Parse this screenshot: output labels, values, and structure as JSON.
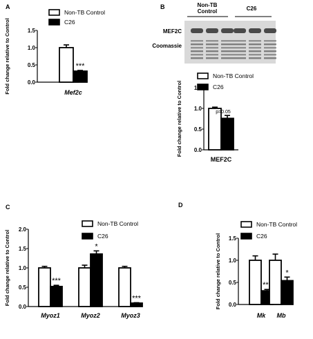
{
  "panel_labels": {
    "a": "A",
    "b": "B",
    "c": "C",
    "d": "D"
  },
  "legend": {
    "control": "Non-TB Control",
    "c26": "C26"
  },
  "ylabel": "Fold change relative to Control",
  "blot": {
    "header_left": "Non-TB",
    "header_left2": "Control",
    "header_right": "C26",
    "row1": "MEF2C",
    "row2": "Coomassie"
  },
  "colors": {
    "control": "#ffffff",
    "c26": "#000000",
    "blot_bg": "#d9d9d9"
  },
  "chart_data": [
    {
      "id": "A",
      "type": "bar",
      "categories": [
        "Mef2c"
      ],
      "series": [
        {
          "name": "Non-TB Control",
          "values": [
            1.0
          ],
          "errors": [
            0.08
          ]
        },
        {
          "name": "C26",
          "values": [
            0.32
          ],
          "errors": [
            0.02
          ]
        }
      ],
      "annotations": [
        "***"
      ],
      "ylabel": "Fold change relative to Control",
      "ylim": [
        0,
        1.5
      ],
      "yticks": [
        "0.0",
        "0.5",
        "1.0",
        "1.5"
      ],
      "tick_values": [
        0,
        0.5,
        1.0,
        1.5
      ]
    },
    {
      "id": "B",
      "type": "bar",
      "categories": [
        "MEF2C"
      ],
      "series": [
        {
          "name": "Non-TB Control",
          "values": [
            1.0
          ],
          "errors": [
            0.03
          ]
        },
        {
          "name": "C26",
          "values": [
            0.76
          ],
          "errors": [
            0.07
          ]
        }
      ],
      "annotations": [
        "p=0.05"
      ],
      "ylabel": "Fold change relative to Control",
      "ylim": [
        0,
        1.5
      ],
      "yticks": [
        "0.0",
        "0.5",
        "1.0",
        "1.5"
      ],
      "tick_values": [
        0,
        0.5,
        1.0,
        1.5
      ]
    },
    {
      "id": "C",
      "type": "bar",
      "categories": [
        "Myoz1",
        "Myoz2",
        "Myoz3"
      ],
      "series": [
        {
          "name": "Non-TB Control",
          "values": [
            1.0,
            1.0,
            1.0
          ],
          "errors": [
            0.04,
            0.07,
            0.04
          ]
        },
        {
          "name": "C26",
          "values": [
            0.52,
            1.36,
            0.09
          ],
          "errors": [
            0.03,
            0.08,
            0.01
          ]
        }
      ],
      "annotations": [
        "***",
        "*",
        "***"
      ],
      "ylabel": "Fold change relative to Control",
      "ylim": [
        0,
        2.0
      ],
      "yticks": [
        "0.0",
        "0.5",
        "1.0",
        "1.5",
        "2.0"
      ],
      "tick_values": [
        0,
        0.5,
        1.0,
        1.5,
        2.0
      ]
    },
    {
      "id": "D",
      "type": "bar",
      "categories": [
        "Mk",
        "Mb"
      ],
      "series": [
        {
          "name": "Non-TB Control",
          "values": [
            1.0,
            1.0
          ],
          "errors": [
            0.1,
            0.14
          ]
        },
        {
          "name": "C26",
          "values": [
            0.31,
            0.54
          ],
          "errors": [
            0.03,
            0.08
          ]
        }
      ],
      "annotations": [
        "***",
        "*"
      ],
      "ylabel": "Fold change relative to Control",
      "ylim": [
        0,
        1.5
      ],
      "yticks": [
        "0.0",
        "0.5",
        "1.0",
        "1.5"
      ],
      "tick_values": [
        0,
        0.5,
        1.0,
        1.5
      ]
    }
  ]
}
